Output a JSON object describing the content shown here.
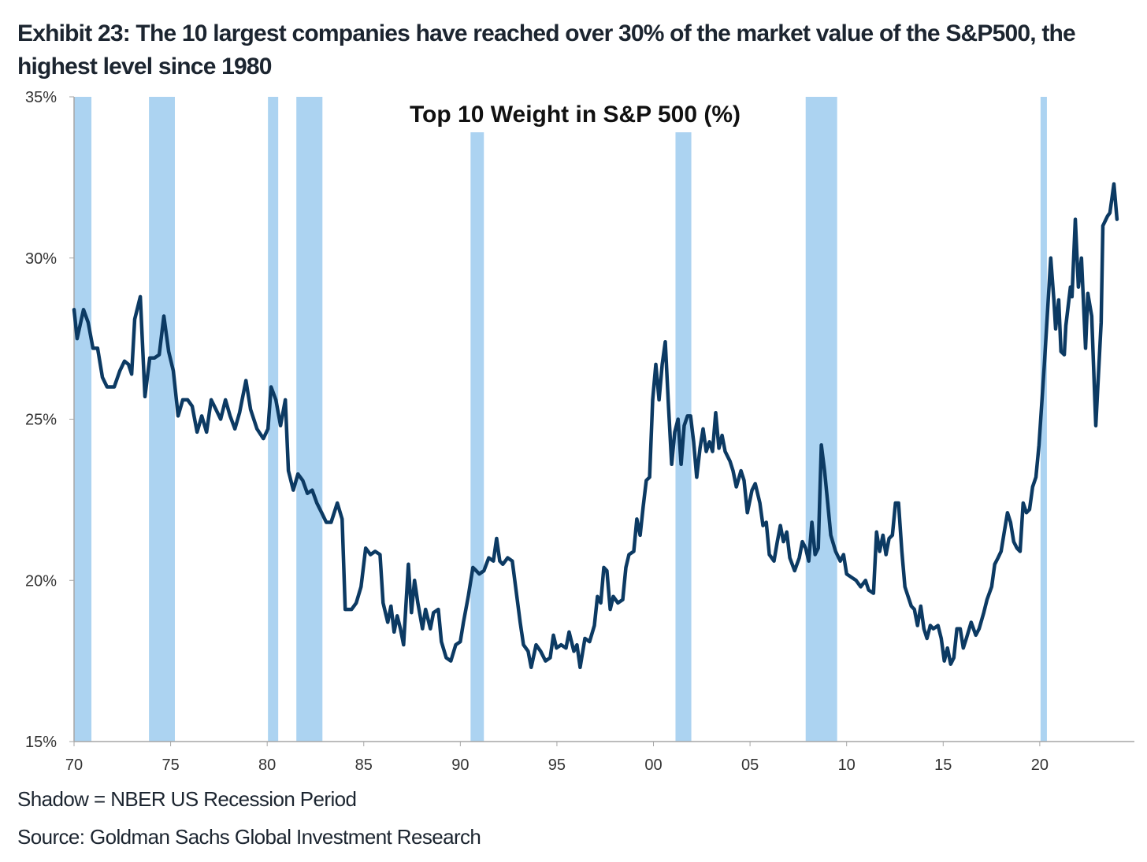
{
  "header": {
    "exhibit_title": "Exhibit 23: The 10 largest companies have reached over 30% of the market value of the S&P500, the highest level since 1980"
  },
  "footer": {
    "shadow_note": "Shadow = NBER US Recession Period",
    "source": "Source: Goldman Sachs Global Investment Research"
  },
  "colors": {
    "line": "#0c3a63",
    "recession": "#acd3f1",
    "axis": "#a6a6a6"
  },
  "chart_data": {
    "type": "line",
    "title": "Top 10 Weight in S&P 500 (%)",
    "xlabel": "",
    "ylabel": "",
    "xlim": [
      1970,
      2024.9
    ],
    "ylim": [
      15,
      35
    ],
    "x_ticks": [
      {
        "v": 1970,
        "label": "70"
      },
      {
        "v": 1975,
        "label": "75"
      },
      {
        "v": 1980,
        "label": "80"
      },
      {
        "v": 1985,
        "label": "85"
      },
      {
        "v": 1990,
        "label": "90"
      },
      {
        "v": 1995,
        "label": "95"
      },
      {
        "v": 2000,
        "label": "00"
      },
      {
        "v": 2005,
        "label": "05"
      },
      {
        "v": 2010,
        "label": "10"
      },
      {
        "v": 2015,
        "label": "15"
      },
      {
        "v": 2020,
        "label": "20"
      }
    ],
    "y_ticks": [
      {
        "v": 15,
        "label": "15%"
      },
      {
        "v": 20,
        "label": "20%"
      },
      {
        "v": 25,
        "label": "25%"
      },
      {
        "v": 30,
        "label": "30%"
      },
      {
        "v": 35,
        "label": "35%"
      }
    ],
    "grid": false,
    "recessions": [
      {
        "start": 1970.0,
        "end": 1970.9,
        "top": 35
      },
      {
        "start": 1973.88,
        "end": 1975.22,
        "top": 35
      },
      {
        "start": 1980.04,
        "end": 1980.57,
        "top": 35
      },
      {
        "start": 1981.51,
        "end": 1982.86,
        "top": 35
      },
      {
        "start": 1990.53,
        "end": 1991.22,
        "top": 33.9
      },
      {
        "start": 2001.14,
        "end": 2001.96,
        "top": 33.9
      },
      {
        "start": 2007.88,
        "end": 2009.51,
        "top": 35
      },
      {
        "start": 2020.04,
        "end": 2020.37,
        "top": 35
      }
    ],
    "series": [
      {
        "name": "Top 10 Weight in S&P 500 (%)",
        "points": [
          [
            1970.0,
            28.4
          ],
          [
            1970.16,
            27.5
          ],
          [
            1970.49,
            28.4
          ],
          [
            1970.73,
            28.0
          ],
          [
            1970.98,
            27.2
          ],
          [
            1971.22,
            27.2
          ],
          [
            1971.47,
            26.3
          ],
          [
            1971.71,
            26.0
          ],
          [
            1972.08,
            26.0
          ],
          [
            1972.37,
            26.5
          ],
          [
            1972.61,
            26.8
          ],
          [
            1972.82,
            26.7
          ],
          [
            1972.98,
            26.4
          ],
          [
            1973.14,
            28.1
          ],
          [
            1973.43,
            28.8
          ],
          [
            1973.67,
            25.7
          ],
          [
            1973.92,
            26.9
          ],
          [
            1974.16,
            26.9
          ],
          [
            1974.41,
            27.0
          ],
          [
            1974.65,
            28.2
          ],
          [
            1974.9,
            27.1
          ],
          [
            1975.14,
            26.5
          ],
          [
            1975.39,
            25.1
          ],
          [
            1975.63,
            25.6
          ],
          [
            1975.88,
            25.6
          ],
          [
            1976.12,
            25.4
          ],
          [
            1976.37,
            24.6
          ],
          [
            1976.61,
            25.1
          ],
          [
            1976.86,
            24.6
          ],
          [
            1977.1,
            25.6
          ],
          [
            1977.35,
            25.3
          ],
          [
            1977.59,
            25.0
          ],
          [
            1977.84,
            25.6
          ],
          [
            1978.08,
            25.1
          ],
          [
            1978.33,
            24.7
          ],
          [
            1978.57,
            25.2
          ],
          [
            1978.9,
            26.2
          ],
          [
            1979.14,
            25.3
          ],
          [
            1979.47,
            24.7
          ],
          [
            1979.8,
            24.4
          ],
          [
            1980.04,
            24.7
          ],
          [
            1980.2,
            26.0
          ],
          [
            1980.45,
            25.6
          ],
          [
            1980.69,
            24.8
          ],
          [
            1980.94,
            25.6
          ],
          [
            1981.1,
            23.4
          ],
          [
            1981.35,
            22.8
          ],
          [
            1981.59,
            23.3
          ],
          [
            1981.84,
            23.1
          ],
          [
            1982.08,
            22.7
          ],
          [
            1982.33,
            22.8
          ],
          [
            1982.57,
            22.4
          ],
          [
            1982.82,
            22.1
          ],
          [
            1983.06,
            21.8
          ],
          [
            1983.31,
            21.8
          ],
          [
            1983.63,
            22.4
          ],
          [
            1983.88,
            21.9
          ],
          [
            1984.04,
            19.1
          ],
          [
            1984.37,
            19.1
          ],
          [
            1984.61,
            19.3
          ],
          [
            1984.86,
            19.8
          ],
          [
            1985.1,
            21.0
          ],
          [
            1985.35,
            20.8
          ],
          [
            1985.59,
            20.9
          ],
          [
            1985.84,
            20.8
          ],
          [
            1986.0,
            19.3
          ],
          [
            1986.24,
            18.7
          ],
          [
            1986.41,
            19.2
          ],
          [
            1986.57,
            18.4
          ],
          [
            1986.73,
            18.9
          ],
          [
            1986.9,
            18.5
          ],
          [
            1987.06,
            18.0
          ],
          [
            1987.31,
            20.5
          ],
          [
            1987.47,
            19.0
          ],
          [
            1987.63,
            20.0
          ],
          [
            1987.8,
            19.3
          ],
          [
            1988.04,
            18.5
          ],
          [
            1988.2,
            19.1
          ],
          [
            1988.45,
            18.5
          ],
          [
            1988.61,
            19.0
          ],
          [
            1988.86,
            19.1
          ],
          [
            1989.02,
            18.1
          ],
          [
            1989.27,
            17.6
          ],
          [
            1989.51,
            17.5
          ],
          [
            1989.76,
            18.0
          ],
          [
            1990.0,
            18.1
          ],
          [
            1990.16,
            18.7
          ],
          [
            1990.41,
            19.5
          ],
          [
            1990.65,
            20.4
          ],
          [
            1990.82,
            20.3
          ],
          [
            1990.98,
            20.2
          ],
          [
            1991.22,
            20.3
          ],
          [
            1991.47,
            20.7
          ],
          [
            1991.71,
            20.6
          ],
          [
            1991.88,
            21.3
          ],
          [
            1992.04,
            20.6
          ],
          [
            1992.2,
            20.5
          ],
          [
            1992.45,
            20.7
          ],
          [
            1992.69,
            20.6
          ],
          [
            1992.86,
            19.8
          ],
          [
            1993.1,
            18.7
          ],
          [
            1993.27,
            18.0
          ],
          [
            1993.51,
            17.8
          ],
          [
            1993.67,
            17.3
          ],
          [
            1993.92,
            18.0
          ],
          [
            1994.16,
            17.8
          ],
          [
            1994.41,
            17.5
          ],
          [
            1994.65,
            17.6
          ],
          [
            1994.82,
            18.3
          ],
          [
            1994.98,
            17.9
          ],
          [
            1995.22,
            18.0
          ],
          [
            1995.47,
            17.9
          ],
          [
            1995.63,
            18.4
          ],
          [
            1995.88,
            17.8
          ],
          [
            1996.04,
            18.0
          ],
          [
            1996.2,
            17.3
          ],
          [
            1996.45,
            18.2
          ],
          [
            1996.69,
            18.1
          ],
          [
            1996.94,
            18.6
          ],
          [
            1997.1,
            19.5
          ],
          [
            1997.27,
            19.3
          ],
          [
            1997.43,
            20.4
          ],
          [
            1997.59,
            20.3
          ],
          [
            1997.76,
            19.1
          ],
          [
            1997.92,
            19.5
          ],
          [
            1998.16,
            19.3
          ],
          [
            1998.41,
            19.4
          ],
          [
            1998.57,
            20.4
          ],
          [
            1998.73,
            20.8
          ],
          [
            1998.98,
            20.9
          ],
          [
            1999.14,
            21.9
          ],
          [
            1999.31,
            21.4
          ],
          [
            1999.47,
            22.3
          ],
          [
            1999.63,
            23.1
          ],
          [
            1999.8,
            23.2
          ],
          [
            1999.96,
            25.6
          ],
          [
            2000.12,
            26.7
          ],
          [
            2000.29,
            25.6
          ],
          [
            2000.45,
            26.7
          ],
          [
            2000.61,
            27.4
          ],
          [
            2000.78,
            25.4
          ],
          [
            2000.94,
            23.6
          ],
          [
            2001.1,
            24.6
          ],
          [
            2001.27,
            25.0
          ],
          [
            2001.43,
            23.6
          ],
          [
            2001.59,
            24.8
          ],
          [
            2001.76,
            25.1
          ],
          [
            2001.92,
            25.1
          ],
          [
            2002.08,
            24.3
          ],
          [
            2002.24,
            23.2
          ],
          [
            2002.41,
            24.1
          ],
          [
            2002.57,
            24.7
          ],
          [
            2002.73,
            24.0
          ],
          [
            2002.9,
            24.3
          ],
          [
            2003.06,
            24.0
          ],
          [
            2003.22,
            25.2
          ],
          [
            2003.39,
            24.1
          ],
          [
            2003.55,
            24.5
          ],
          [
            2003.71,
            24.0
          ],
          [
            2003.96,
            23.7
          ],
          [
            2004.12,
            23.4
          ],
          [
            2004.29,
            22.9
          ],
          [
            2004.53,
            23.4
          ],
          [
            2004.69,
            23.1
          ],
          [
            2004.86,
            22.1
          ],
          [
            2005.1,
            22.8
          ],
          [
            2005.27,
            23.0
          ],
          [
            2005.51,
            22.4
          ],
          [
            2005.67,
            21.7
          ],
          [
            2005.84,
            21.8
          ],
          [
            2006.0,
            20.8
          ],
          [
            2006.24,
            20.6
          ],
          [
            2006.41,
            21.2
          ],
          [
            2006.57,
            21.7
          ],
          [
            2006.73,
            21.2
          ],
          [
            2006.9,
            21.5
          ],
          [
            2007.06,
            20.7
          ],
          [
            2007.31,
            20.3
          ],
          [
            2007.55,
            20.7
          ],
          [
            2007.71,
            21.2
          ],
          [
            2007.88,
            21.0
          ],
          [
            2008.04,
            20.6
          ],
          [
            2008.2,
            21.8
          ],
          [
            2008.37,
            20.8
          ],
          [
            2008.53,
            21.0
          ],
          [
            2008.69,
            24.2
          ],
          [
            2008.86,
            23.4
          ],
          [
            2009.02,
            22.4
          ],
          [
            2009.18,
            21.4
          ],
          [
            2009.43,
            20.9
          ],
          [
            2009.67,
            20.6
          ],
          [
            2009.84,
            20.8
          ],
          [
            2010.0,
            20.2
          ],
          [
            2010.24,
            20.1
          ],
          [
            2010.49,
            20.0
          ],
          [
            2010.73,
            19.8
          ],
          [
            2010.98,
            20.0
          ],
          [
            2011.14,
            19.7
          ],
          [
            2011.39,
            19.6
          ],
          [
            2011.55,
            21.5
          ],
          [
            2011.71,
            20.9
          ],
          [
            2011.88,
            21.4
          ],
          [
            2012.04,
            20.8
          ],
          [
            2012.2,
            21.3
          ],
          [
            2012.37,
            21.4
          ],
          [
            2012.53,
            22.4
          ],
          [
            2012.69,
            22.4
          ],
          [
            2012.86,
            20.9
          ],
          [
            2013.02,
            19.8
          ],
          [
            2013.18,
            19.5
          ],
          [
            2013.35,
            19.2
          ],
          [
            2013.51,
            19.1
          ],
          [
            2013.67,
            18.6
          ],
          [
            2013.84,
            19.2
          ],
          [
            2014.0,
            18.5
          ],
          [
            2014.16,
            18.2
          ],
          [
            2014.33,
            18.6
          ],
          [
            2014.49,
            18.5
          ],
          [
            2014.73,
            18.6
          ],
          [
            2014.9,
            18.2
          ],
          [
            2015.06,
            17.5
          ],
          [
            2015.22,
            17.9
          ],
          [
            2015.39,
            17.4
          ],
          [
            2015.55,
            17.6
          ],
          [
            2015.71,
            18.5
          ],
          [
            2015.88,
            18.5
          ],
          [
            2016.04,
            17.9
          ],
          [
            2016.2,
            18.2
          ],
          [
            2016.45,
            18.7
          ],
          [
            2016.69,
            18.3
          ],
          [
            2016.86,
            18.5
          ],
          [
            2017.1,
            19.0
          ],
          [
            2017.27,
            19.4
          ],
          [
            2017.51,
            19.8
          ],
          [
            2017.67,
            20.5
          ],
          [
            2017.84,
            20.7
          ],
          [
            2018.0,
            20.9
          ],
          [
            2018.16,
            21.5
          ],
          [
            2018.33,
            22.1
          ],
          [
            2018.49,
            21.8
          ],
          [
            2018.65,
            21.2
          ],
          [
            2018.82,
            21.0
          ],
          [
            2018.98,
            20.9
          ],
          [
            2019.14,
            22.4
          ],
          [
            2019.31,
            22.1
          ],
          [
            2019.47,
            22.2
          ],
          [
            2019.63,
            22.9
          ],
          [
            2019.8,
            23.2
          ],
          [
            2019.96,
            24.2
          ],
          [
            2020.24,
            26.7
          ],
          [
            2020.57,
            30.0
          ],
          [
            2020.73,
            28.7
          ],
          [
            2020.82,
            27.8
          ],
          [
            2020.98,
            28.7
          ],
          [
            2021.1,
            27.1
          ],
          [
            2021.27,
            27.0
          ],
          [
            2021.35,
            27.9
          ],
          [
            2021.59,
            29.1
          ],
          [
            2021.67,
            28.8
          ],
          [
            2021.84,
            31.2
          ],
          [
            2022.0,
            29.1
          ],
          [
            2022.16,
            30.0
          ],
          [
            2022.37,
            27.2
          ],
          [
            2022.49,
            28.9
          ],
          [
            2022.69,
            28.2
          ],
          [
            2022.9,
            24.8
          ],
          [
            2023.18,
            28.0
          ],
          [
            2023.27,
            31.0
          ],
          [
            2023.51,
            31.3
          ],
          [
            2023.63,
            31.4
          ],
          [
            2023.84,
            32.3
          ],
          [
            2024.0,
            31.2
          ]
        ]
      }
    ]
  }
}
